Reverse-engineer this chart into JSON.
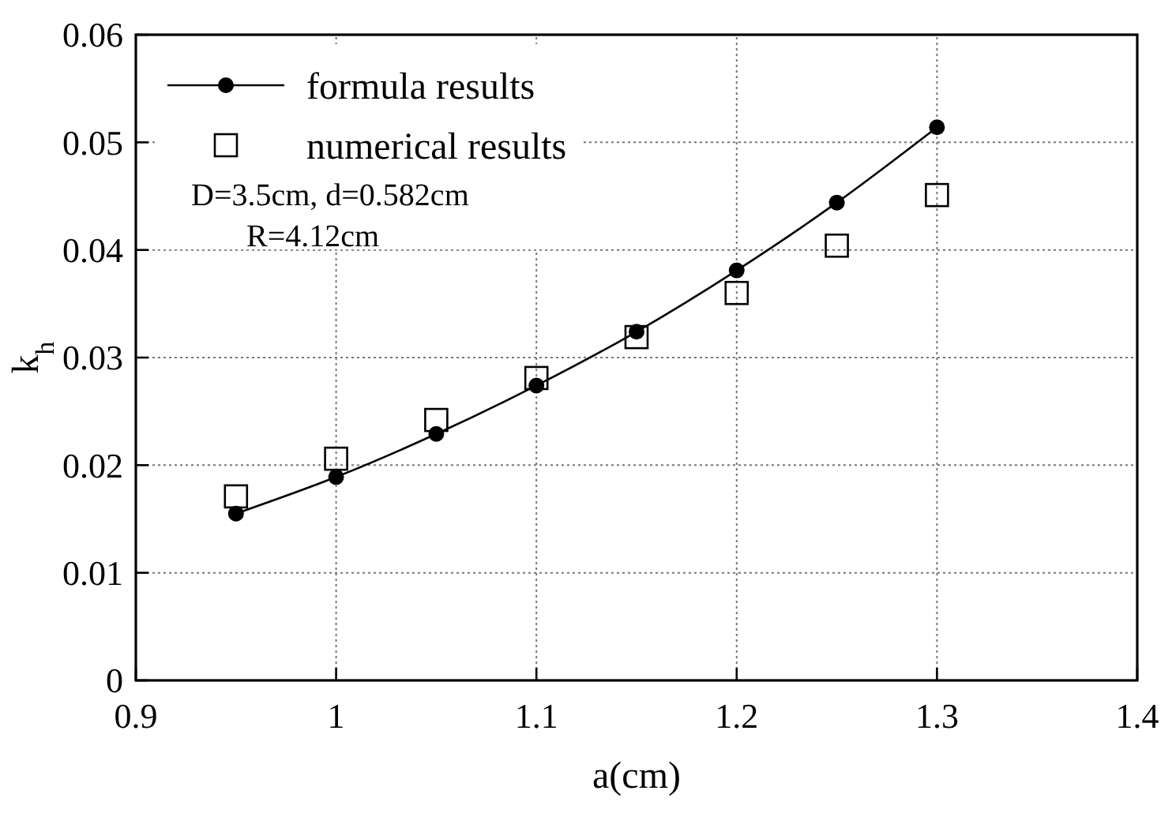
{
  "chart_data": {
    "type": "line",
    "xlabel": "a(cm)",
    "ylabel": "k$_{h}$",
    "x": [
      0.95,
      1.0,
      1.05,
      1.1,
      1.15,
      1.2,
      1.25,
      1.3
    ],
    "series": [
      {
        "name": "formula results",
        "color": "#000000",
        "marker": "circle",
        "values": [
          0.0155,
          0.0189,
          0.0229,
          0.0274,
          0.0324,
          0.0381,
          0.0444,
          0.0514
        ]
      },
      {
        "name": "numerical results",
        "type": "scatter",
        "color": "#000000",
        "marker": "square",
        "values": [
          0.0171,
          0.0206,
          0.0242,
          0.0281,
          0.0319,
          0.036,
          0.0404,
          0.0451
        ]
      }
    ],
    "xlim": [
      0.9,
      1.4
    ],
    "xticks": [
      0.9,
      1,
      1.1,
      1.2,
      1.3,
      1.4
    ],
    "ylim": [
      0,
      0.06
    ],
    "yticks": [
      0,
      0.01,
      0.02,
      0.03,
      0.04,
      0.05,
      0.06
    ],
    "grid": true,
    "legend": "top left",
    "annotations": [
      "D=3.5cm, d=0.582cm",
      "R=4.12cm"
    ]
  }
}
